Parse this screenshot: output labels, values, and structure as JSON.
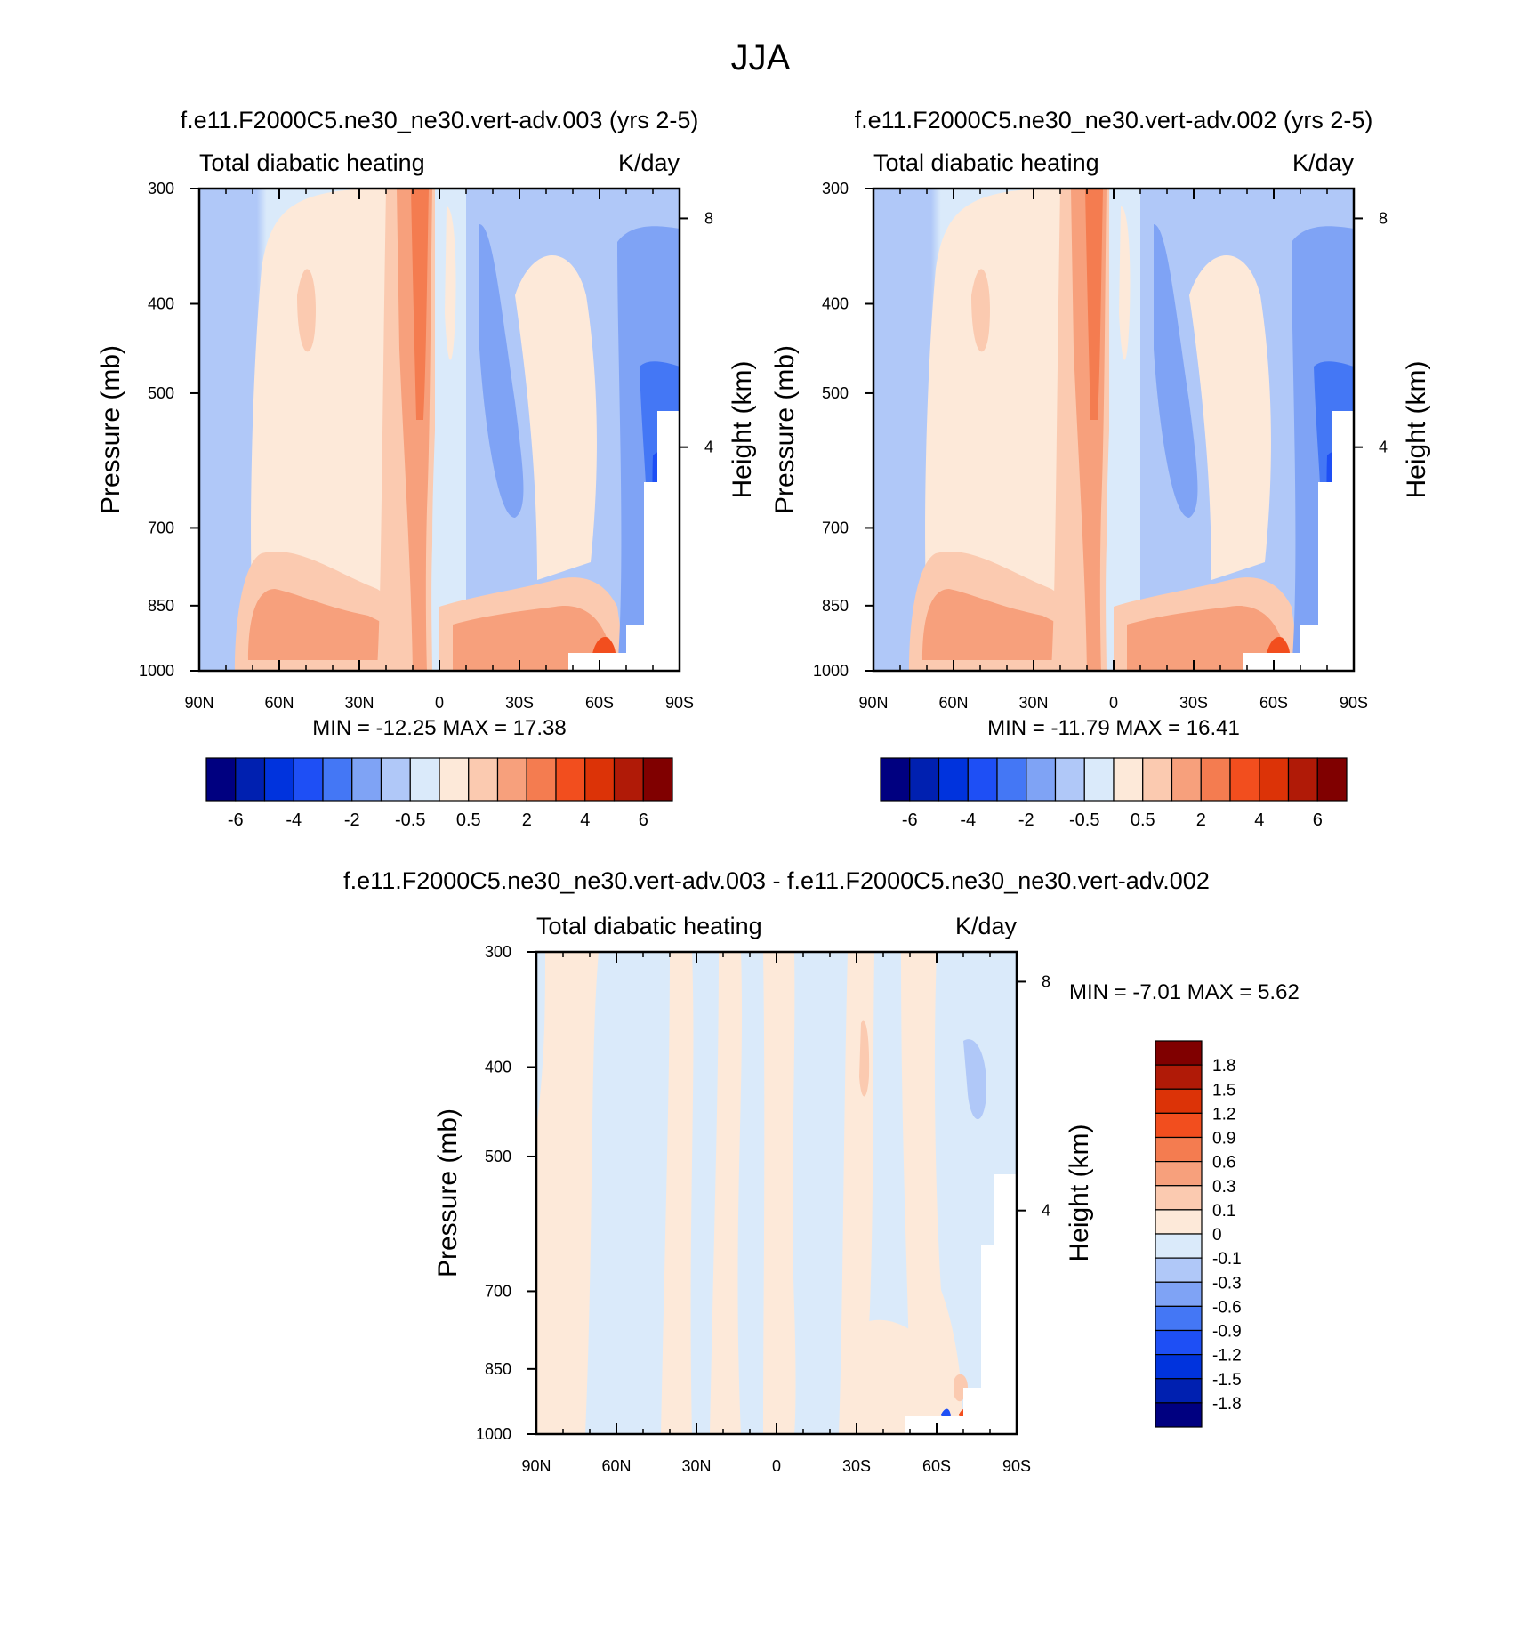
{
  "figure": {
    "title": "JJA"
  },
  "scale": {
    "pressure_ticks": [
      300,
      400,
      500,
      700,
      850,
      1000
    ],
    "height_ticks": [
      8,
      4
    ],
    "lat_tick_labels": [
      "90N",
      "60N",
      "30N",
      "0",
      "30S",
      "60S",
      "90S"
    ],
    "panel_top_left": "Total diabatic heating",
    "panel_top_right": "K/day",
    "y_label": "Pressure (mb)",
    "y_label_right": "Height (km)"
  },
  "colors": {
    "main_scale": [
      "#000080",
      "#0020b0",
      "#0033dd",
      "#1e4ff5",
      "#4477f5",
      "#7fa3f5",
      "#b0c8f8",
      "#daeafa",
      "#fde9d9",
      "#fbcab0",
      "#f7a07c",
      "#f47c50",
      "#f24e1e",
      "#dc3307",
      "#b01a07",
      "#800000"
    ],
    "diff_scale": [
      "#000080",
      "#0020b0",
      "#0033dd",
      "#1e4ff5",
      "#4477f5",
      "#7fa3f5",
      "#b0c8f8",
      "#daeafa",
      "#fde9d9",
      "#fbcab0",
      "#f7a07c",
      "#f47c50",
      "#f24e1e",
      "#dc3307",
      "#b01a07",
      "#800000"
    ]
  },
  "main_colorbar_labels": [
    "-6",
    "-4",
    "-2",
    "-0.5",
    "0.5",
    "2",
    "4",
    "6"
  ],
  "diff_colorbar_labels": [
    "1.8",
    "1.5",
    "1.2",
    "0.9",
    "0.6",
    "0.3",
    "0.1",
    "0",
    "-0.1",
    "-0.3",
    "-0.6",
    "-0.9",
    "-1.2",
    "-1.5",
    "-1.8"
  ],
  "chart_data": [
    {
      "type": "heatmap",
      "title": "f.e11.F2000C5.ne30_ne30.vert-adv.003 (yrs 2-5)",
      "left_string": "Total diabatic heating",
      "right_string": "K/day",
      "ylabel": "Pressure (mb)",
      "ylabel_right": "Height (km)",
      "ylim": [
        1000,
        300
      ],
      "xlim": [
        "90N",
        "90S"
      ],
      "min_max_text": "MIN = -12.25  MAX =  17.38",
      "min": -12.25,
      "max": 17.38,
      "contour_levels": [
        -6,
        -5,
        -4,
        -3,
        -2,
        -1,
        -0.5,
        0,
        0.5,
        1,
        2,
        3,
        4,
        5,
        6
      ]
    },
    {
      "type": "heatmap",
      "title": "f.e11.F2000C5.ne30_ne30.vert-adv.002 (yrs 2-5)",
      "left_string": "Total diabatic heating",
      "right_string": "K/day",
      "ylabel": "Pressure (mb)",
      "ylabel_right": "Height (km)",
      "ylim": [
        1000,
        300
      ],
      "xlim": [
        "90N",
        "90S"
      ],
      "min_max_text": "MIN = -11.79  MAX =  16.41",
      "min": -11.79,
      "max": 16.41,
      "contour_levels": [
        -6,
        -5,
        -4,
        -3,
        -2,
        -1,
        -0.5,
        0,
        0.5,
        1,
        2,
        3,
        4,
        5,
        6
      ]
    },
    {
      "type": "heatmap",
      "title": "f.e11.F2000C5.ne30_ne30.vert-adv.003 - f.e11.F2000C5.ne30_ne30.vert-adv.002",
      "left_string": "Total diabatic heating",
      "right_string": "K/day",
      "ylabel": "Pressure (mb)",
      "ylabel_right": "Height (km)",
      "ylim": [
        1000,
        300
      ],
      "xlim": [
        "90N",
        "90S"
      ],
      "min_max_text": "MIN =  -7.01  MAX =   5.62",
      "min": -7.01,
      "max": 5.62,
      "contour_levels": [
        -1.8,
        -1.5,
        -1.2,
        -0.9,
        -0.6,
        -0.3,
        -0.1,
        0,
        0.1,
        0.3,
        0.6,
        0.9,
        1.2,
        1.5,
        1.8
      ]
    }
  ]
}
